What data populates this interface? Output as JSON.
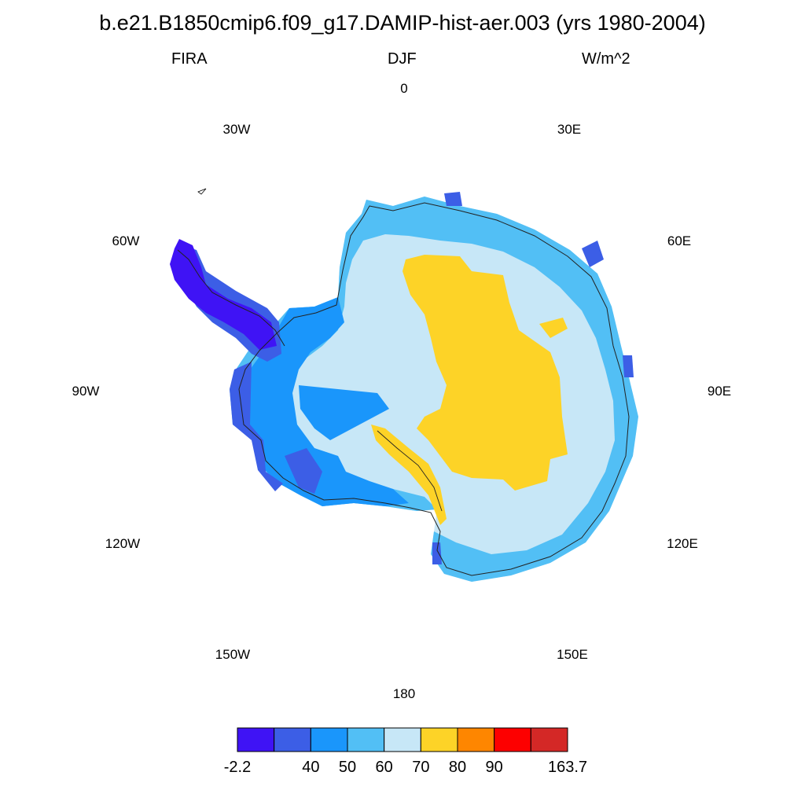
{
  "title": "b.e21.B1850cmip6.f09_g17.DAMIP-hist-aer.003 (yrs 1980-2004)",
  "left_label": "FIRA",
  "center_label": "DJF",
  "right_label": "W/m^2",
  "longitude_labels": [
    "0",
    "30E",
    "60E",
    "90E",
    "120E",
    "150E",
    "180",
    "150W",
    "120W",
    "90W",
    "60W",
    "30W"
  ],
  "colorbar": {
    "colors": [
      "#3f13f5",
      "#3c5ee6",
      "#1a96fb",
      "#52bff5",
      "#c7e7f7",
      "#fdd327",
      "#fe8600",
      "#fd0000",
      "#d42826"
    ],
    "labels": [
      "-2.2",
      "40",
      "50",
      "60",
      "70",
      "80",
      "90",
      "163.7"
    ]
  }
}
